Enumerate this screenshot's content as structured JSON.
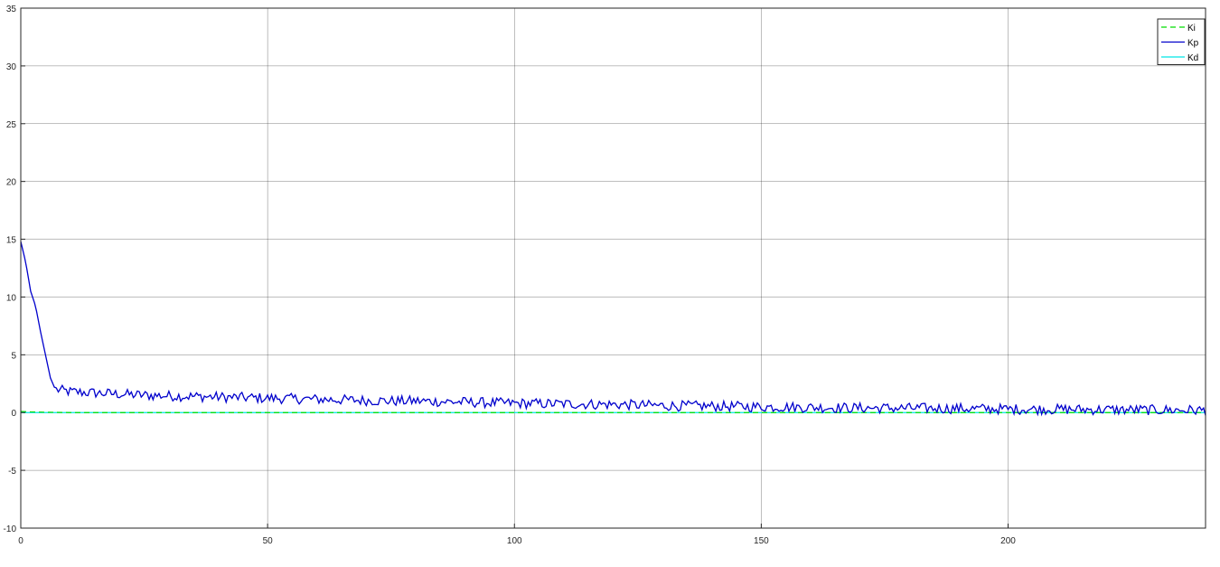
{
  "chart_data": {
    "type": "line",
    "title": "",
    "xlabel": "",
    "ylabel": "",
    "xlim": [
      0,
      240
    ],
    "ylim": [
      -10,
      35
    ],
    "x_ticks": [
      0,
      50,
      100,
      150,
      200
    ],
    "y_ticks": [
      -10,
      -5,
      0,
      5,
      10,
      15,
      20,
      25,
      30,
      35
    ],
    "grid": true,
    "legend_position": "top-right",
    "series": [
      {
        "name": "Ki",
        "color": "#00dd00",
        "style": "dashed",
        "x": [
          0,
          1,
          2,
          3,
          4,
          5,
          10,
          50,
          100,
          150,
          200,
          240
        ],
        "y": [
          0.1,
          0.08,
          0.06,
          0.05,
          0.04,
          0.03,
          0.0,
          0.0,
          0.0,
          0.0,
          0.0,
          0.0
        ]
      },
      {
        "name": "Kp",
        "color": "#0000cc",
        "style": "solid",
        "x": [
          0,
          1,
          2,
          3,
          4,
          5,
          6,
          7,
          10,
          15,
          20,
          25,
          30,
          35,
          40,
          45,
          50,
          55,
          60,
          65,
          70,
          75,
          80,
          85,
          90,
          95,
          100,
          110,
          120,
          130,
          140,
          150,
          160,
          170,
          180,
          190,
          200,
          210,
          220,
          230,
          240
        ],
        "y": [
          14.8,
          13.0,
          10.5,
          9.2,
          7.0,
          5.0,
          3.0,
          2.0,
          1.8,
          1.7,
          1.6,
          1.5,
          1.45,
          1.4,
          1.35,
          1.3,
          1.25,
          1.2,
          1.15,
          1.1,
          1.05,
          1.0,
          1.0,
          0.95,
          0.9,
          0.85,
          0.8,
          0.75,
          0.7,
          0.6,
          0.55,
          0.5,
          0.45,
          0.4,
          0.38,
          0.35,
          0.3,
          0.28,
          0.25,
          0.22,
          0.2
        ],
        "noise_amplitude": 0.45
      },
      {
        "name": "Kd",
        "color": "#00e5e5",
        "style": "solid",
        "x": [
          0,
          240
        ],
        "y": [
          0.0,
          0.0
        ]
      }
    ]
  }
}
